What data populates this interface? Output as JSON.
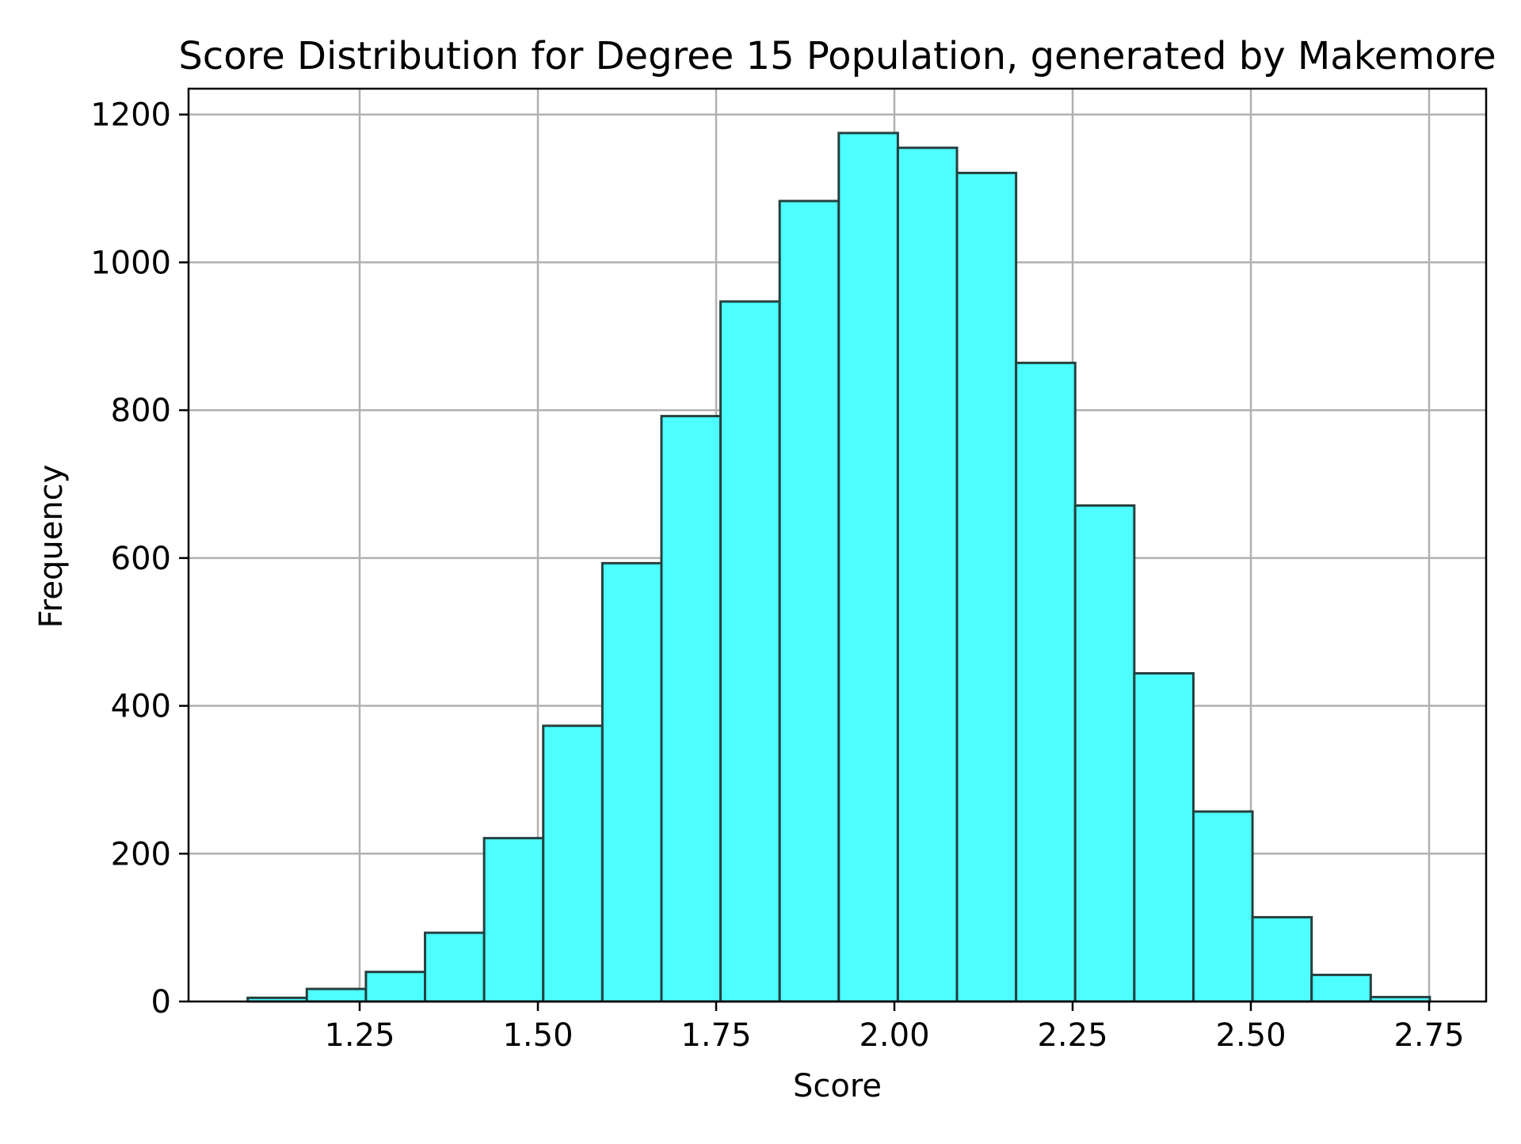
{
  "chart_data": {
    "type": "bar",
    "title": "Score Distribution for Degree 15 Population, generated by Makemore",
    "xlabel": "Score",
    "ylabel": "Frequency",
    "xlim": [
      1.01,
      2.83
    ],
    "ylim": [
      0,
      1235
    ],
    "xticks": [
      {
        "value": 1.25,
        "label": "1.25"
      },
      {
        "value": 1.5,
        "label": "1.50"
      },
      {
        "value": 1.75,
        "label": "1.75"
      },
      {
        "value": 2.0,
        "label": "2.00"
      },
      {
        "value": 2.25,
        "label": "2.25"
      },
      {
        "value": 2.5,
        "label": "2.50"
      },
      {
        "value": 2.75,
        "label": "2.75"
      }
    ],
    "yticks": [
      {
        "value": 0,
        "label": "0"
      },
      {
        "value": 200,
        "label": "200"
      },
      {
        "value": 400,
        "label": "400"
      },
      {
        "value": 600,
        "label": "600"
      },
      {
        "value": 800,
        "label": "800"
      },
      {
        "value": 1000,
        "label": "1000"
      },
      {
        "value": 1200,
        "label": "1200"
      }
    ],
    "bin_start": 1.093,
    "bin_width": 0.0829,
    "values": [
      5,
      17,
      40,
      93,
      221,
      373,
      593,
      792,
      947,
      1083,
      1175,
      1155,
      1121,
      864,
      671,
      444,
      257,
      114,
      36,
      6
    ],
    "grid": true,
    "legend": "none",
    "bar_color": "#4dffff",
    "edge_color": "#26403f",
    "grid_color": "#b0b0b0"
  }
}
